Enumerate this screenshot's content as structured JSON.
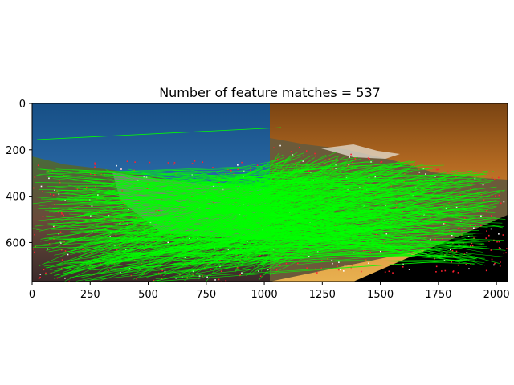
{
  "figure": {
    "title": "Number of feature matches = 537",
    "x_axis": {
      "range": [
        0,
        2048
      ],
      "ticks": [
        {
          "value": 0,
          "label": "0"
        },
        {
          "value": 250,
          "label": "250"
        },
        {
          "value": 500,
          "label": "500"
        },
        {
          "value": 750,
          "label": "750"
        },
        {
          "value": 1000,
          "label": "1000"
        },
        {
          "value": 1250,
          "label": "1250"
        },
        {
          "value": 1500,
          "label": "1500"
        },
        {
          "value": 1750,
          "label": "1750"
        },
        {
          "value": 2000,
          "label": "2000"
        }
      ]
    },
    "y_axis": {
      "range": [
        768,
        0
      ],
      "ticks": [
        {
          "value": 0,
          "label": "0"
        },
        {
          "value": 200,
          "label": "200"
        },
        {
          "value": 400,
          "label": "400"
        },
        {
          "value": 600,
          "label": "600"
        }
      ]
    },
    "match_count": 537,
    "colors": {
      "match_line": "#00ff00",
      "keypoint": "#ff2030",
      "left_sky": "#1e5a92",
      "right_sky": "#b0661e",
      "right_shadow": "#000000"
    }
  }
}
